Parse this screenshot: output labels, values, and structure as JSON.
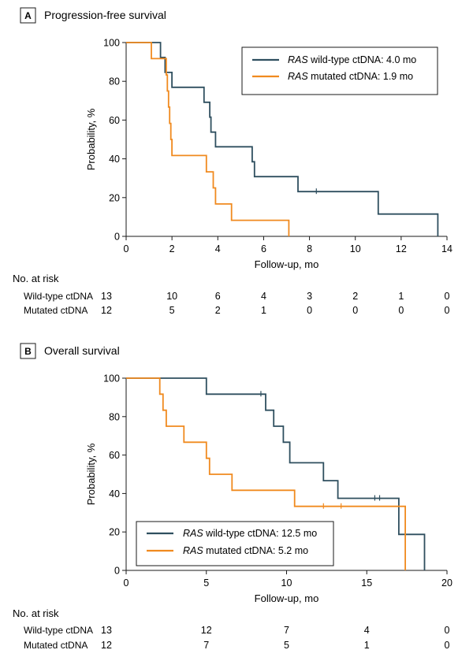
{
  "chart_data": [
    {
      "type": "line",
      "step": true,
      "panel_letter": "A",
      "title": "Progression-free survival",
      "xlabel": "Follow-up, mo",
      "ylabel": "Probability, %",
      "xlim": [
        0,
        14
      ],
      "ylim": [
        0,
        100
      ],
      "xticks": [
        0,
        2,
        4,
        6,
        8,
        10,
        12,
        14
      ],
      "yticks": [
        0,
        20,
        40,
        60,
        80,
        100
      ],
      "legend_position": "top-right",
      "colors": {
        "wild": "#2f4f5f",
        "mut": "#f08a1f"
      },
      "series": [
        {
          "key": "wild",
          "name_italic": "RAS",
          "name_rest": " wild-type ctDNA: 4.0 mo",
          "steps": [
            [
              0,
              100
            ],
            [
              1.5,
              100
            ],
            [
              1.5,
              92.3
            ],
            [
              1.7,
              92.3
            ],
            [
              1.7,
              84.6
            ],
            [
              2.0,
              84.6
            ],
            [
              2.0,
              76.9
            ],
            [
              3.4,
              76.9
            ],
            [
              3.4,
              69.2
            ],
            [
              3.65,
              69.2
            ],
            [
              3.65,
              61.5
            ],
            [
              3.7,
              61.5
            ],
            [
              3.7,
              53.8
            ],
            [
              3.9,
              53.8
            ],
            [
              3.9,
              46.2
            ],
            [
              5.5,
              46.2
            ],
            [
              5.5,
              38.5
            ],
            [
              5.6,
              38.5
            ],
            [
              5.6,
              30.8
            ],
            [
              7.5,
              30.8
            ],
            [
              7.5,
              23.1
            ],
            [
              11.0,
              23.1
            ],
            [
              11.0,
              11.5
            ],
            [
              13.6,
              11.5
            ],
            [
              13.6,
              0
            ]
          ],
          "censor": [
            [
              8.3,
              23.1
            ]
          ]
        },
        {
          "key": "mut",
          "name_italic": "RAS",
          "name_rest": " mutated ctDNA: 1.9 mo",
          "steps": [
            [
              0,
              100
            ],
            [
              1.1,
              100
            ],
            [
              1.1,
              91.7
            ],
            [
              1.75,
              91.7
            ],
            [
              1.75,
              83.3
            ],
            [
              1.8,
              83.3
            ],
            [
              1.8,
              75.0
            ],
            [
              1.85,
              75.0
            ],
            [
              1.85,
              66.7
            ],
            [
              1.9,
              66.7
            ],
            [
              1.9,
              58.3
            ],
            [
              1.95,
              58.3
            ],
            [
              1.95,
              50.0
            ],
            [
              2.0,
              50.0
            ],
            [
              2.0,
              41.7
            ],
            [
              3.5,
              41.7
            ],
            [
              3.5,
              33.3
            ],
            [
              3.8,
              33.3
            ],
            [
              3.8,
              25.0
            ],
            [
              3.9,
              25.0
            ],
            [
              3.9,
              16.7
            ],
            [
              4.6,
              16.7
            ],
            [
              4.6,
              8.3
            ],
            [
              7.1,
              8.3
            ],
            [
              7.1,
              0
            ]
          ],
          "censor": []
        }
      ],
      "risk_table": {
        "heading": "No. at risk",
        "rows": [
          {
            "label": "Wild-type ctDNA",
            "values": [
              "13",
              "10",
              "6",
              "4",
              "3",
              "2",
              "1",
              "0"
            ]
          },
          {
            "label": "Mutated ctDNA",
            "values": [
              "12",
              "5",
              "2",
              "1",
              "0",
              "0",
              "0",
              "0"
            ]
          }
        ]
      }
    },
    {
      "type": "line",
      "step": true,
      "panel_letter": "B",
      "title": "Overall survival",
      "xlabel": "Follow-up, mo",
      "ylabel": "Probability, %",
      "xlim": [
        0,
        20
      ],
      "ylim": [
        0,
        100
      ],
      "xticks": [
        0,
        5,
        10,
        15,
        20
      ],
      "yticks": [
        0,
        20,
        40,
        60,
        80,
        100
      ],
      "legend_position": "bottom-left",
      "colors": {
        "wild": "#2f4f5f",
        "mut": "#f08a1f"
      },
      "series": [
        {
          "key": "wild",
          "name_italic": "RAS",
          "name_rest": " wild-type ctDNA: 12.5 mo",
          "steps": [
            [
              0,
              100
            ],
            [
              5.0,
              100
            ],
            [
              5.0,
              91.7
            ],
            [
              8.7,
              91.7
            ],
            [
              8.7,
              83.3
            ],
            [
              9.2,
              83.3
            ],
            [
              9.2,
              75.0
            ],
            [
              9.8,
              75.0
            ],
            [
              9.8,
              66.7
            ],
            [
              10.2,
              66.7
            ],
            [
              10.2,
              56.0
            ],
            [
              12.3,
              56.0
            ],
            [
              12.3,
              46.7
            ],
            [
              13.2,
              46.7
            ],
            [
              13.2,
              37.5
            ],
            [
              17.0,
              37.5
            ],
            [
              17.0,
              18.75
            ],
            [
              18.6,
              18.75
            ],
            [
              18.6,
              0
            ]
          ],
          "censor": [
            [
              8.4,
              91.7
            ],
            [
              15.5,
              37.5
            ],
            [
              15.8,
              37.5
            ]
          ]
        },
        {
          "key": "mut",
          "name_italic": "RAS",
          "name_rest": " mutated ctDNA: 5.2 mo",
          "steps": [
            [
              0,
              100
            ],
            [
              2.1,
              100
            ],
            [
              2.1,
              91.7
            ],
            [
              2.3,
              91.7
            ],
            [
              2.3,
              83.3
            ],
            [
              2.5,
              83.3
            ],
            [
              2.5,
              75.0
            ],
            [
              3.6,
              75.0
            ],
            [
              3.6,
              66.7
            ],
            [
              5.0,
              66.7
            ],
            [
              5.0,
              58.3
            ],
            [
              5.2,
              58.3
            ],
            [
              5.2,
              50.0
            ],
            [
              6.6,
              50.0
            ],
            [
              6.6,
              41.7
            ],
            [
              10.5,
              41.7
            ],
            [
              10.5,
              33.3
            ],
            [
              17.4,
              33.3
            ],
            [
              17.4,
              0
            ]
          ],
          "censor": [
            [
              12.3,
              33.3
            ],
            [
              13.4,
              33.3
            ]
          ]
        }
      ],
      "risk_table": {
        "heading": "No. at risk",
        "rows": [
          {
            "label": "Wild-type ctDNA",
            "values": [
              "13",
              "12",
              "7",
              "4",
              "0"
            ]
          },
          {
            "label": "Mutated ctDNA",
            "values": [
              "12",
              "7",
              "5",
              "1",
              "0"
            ]
          }
        ]
      }
    }
  ]
}
